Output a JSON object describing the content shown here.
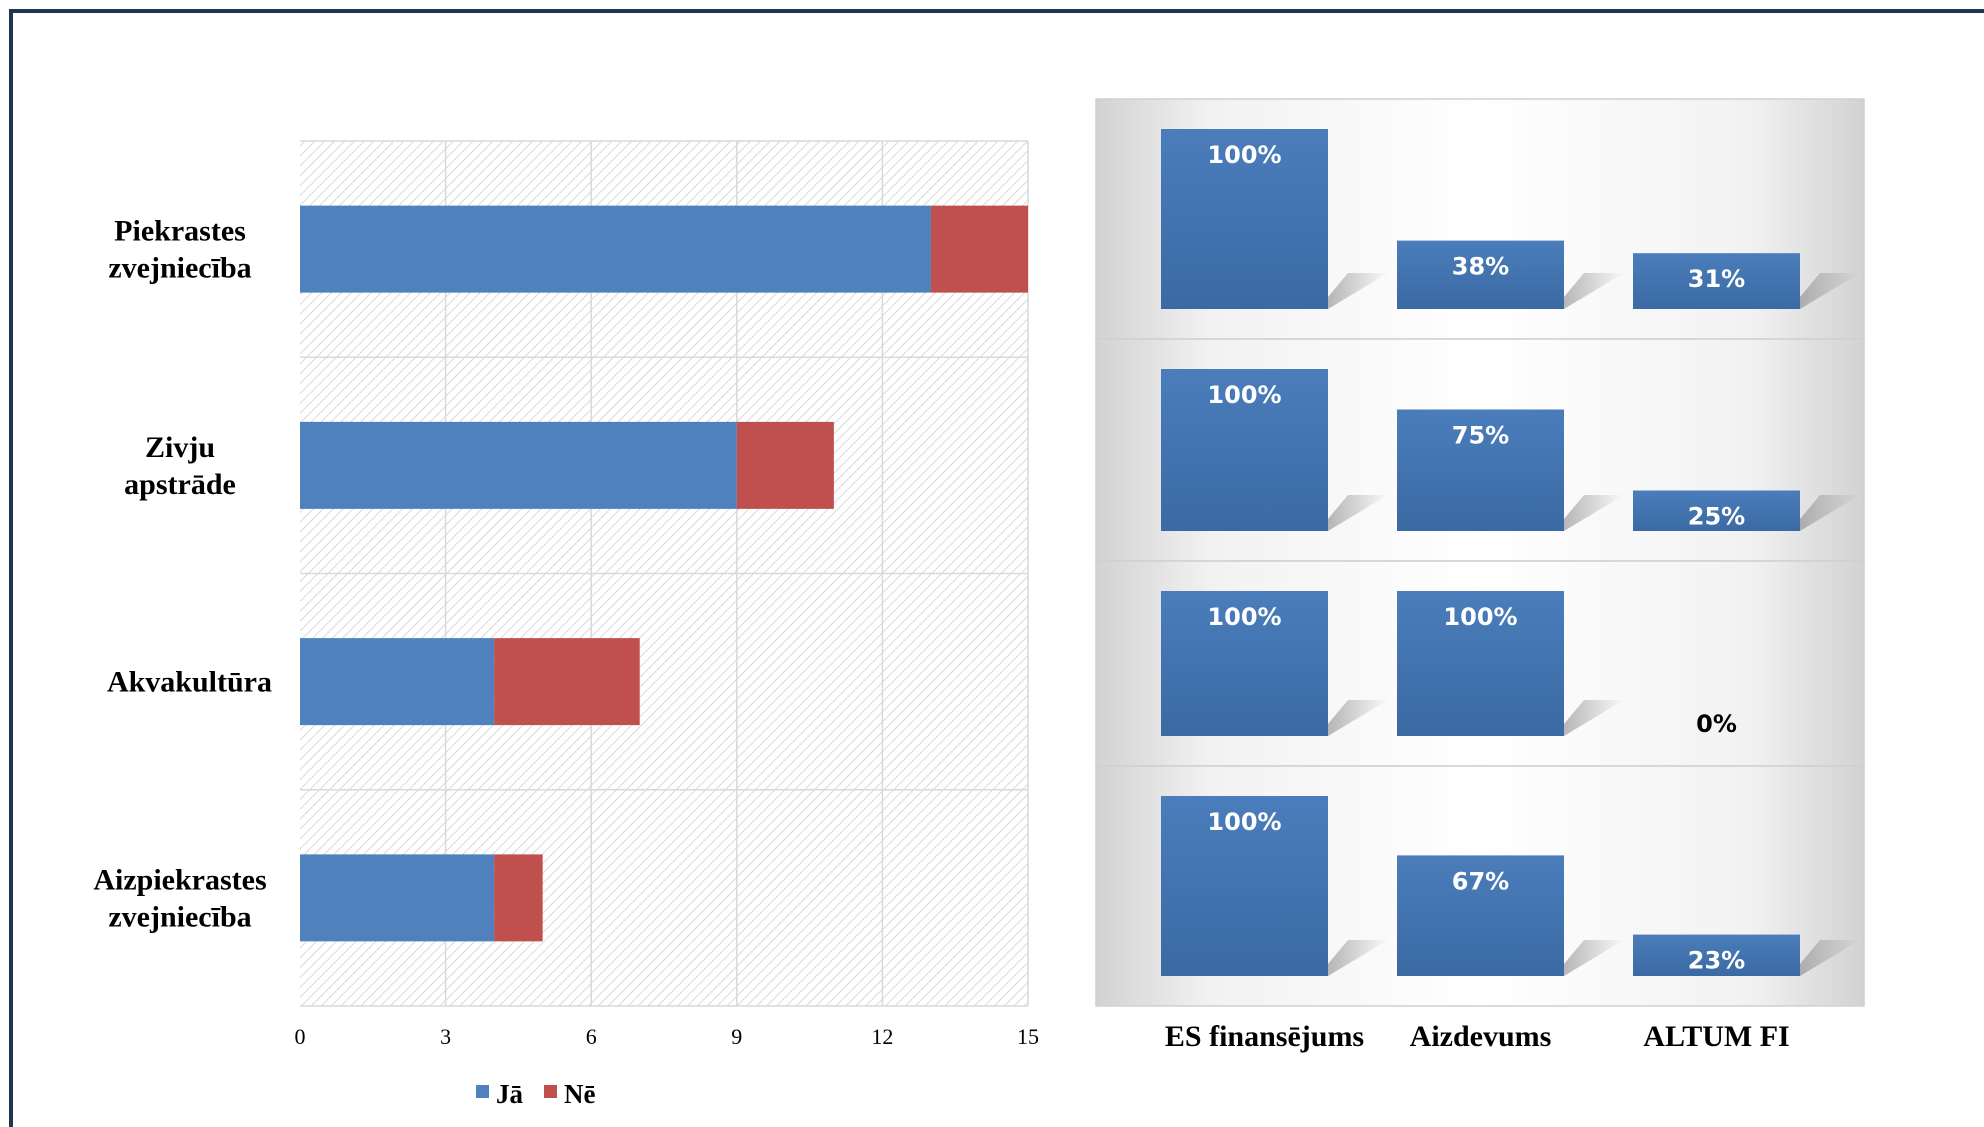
{
  "chart_data": [
    {
      "type": "bar",
      "orientation": "horizontal",
      "stacked": true,
      "categories": [
        "Piekrastes zvejniecība",
        "Zivju apstrāde",
        "Akvakultūra",
        "Aizpiekrastes zvejniecība"
      ],
      "series": [
        {
          "name": "Jā",
          "values": [
            13,
            9,
            4,
            4
          ],
          "color": "#4f81bd"
        },
        {
          "name": "Nē",
          "values": [
            2,
            2,
            3,
            1
          ],
          "color": "#c0504d"
        }
      ],
      "xlim": [
        0,
        15
      ],
      "xticks": [
        "0",
        "3",
        "6",
        "9",
        "12",
        "15"
      ],
      "grid": true,
      "legend": "bottom"
    },
    {
      "type": "bar",
      "orientation": "vertical",
      "panels": 4,
      "categories": [
        "ES finansējums",
        "Aizdevums",
        "ALTUM FI"
      ],
      "rows": [
        {
          "values": [
            100,
            38,
            31
          ],
          "labels": [
            "100%",
            "38%",
            "31%"
          ]
        },
        {
          "values": [
            100,
            75,
            25
          ],
          "labels": [
            "100%",
            "75%",
            "25%"
          ]
        },
        {
          "values": [
            100,
            100,
            0
          ],
          "labels": [
            "100%",
            "100%",
            "0%"
          ]
        },
        {
          "values": [
            100,
            67,
            23
          ],
          "labels": [
            "100%",
            "67%",
            "23%"
          ]
        }
      ],
      "ylim": [
        0,
        100
      ],
      "color": "#4472a8"
    }
  ]
}
